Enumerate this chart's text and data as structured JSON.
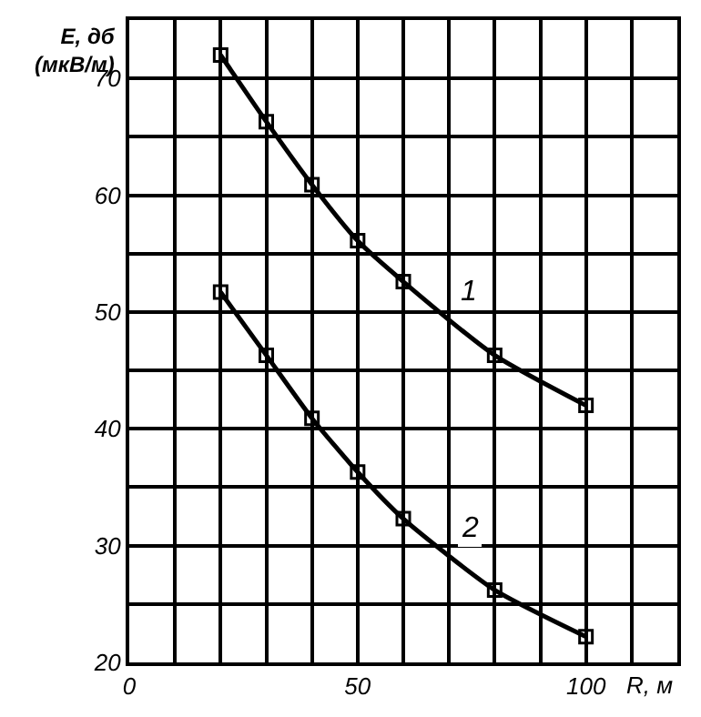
{
  "chart_data": {
    "type": "line",
    "xlabel": "R, м",
    "ylabel": "E, дб\n(мкВ/м)",
    "xlim": [
      0,
      120
    ],
    "ylim": [
      20,
      75
    ],
    "xticks": [
      0,
      {
        "value": 10,
        "label": null
      },
      {
        "value": 20,
        "label": null
      },
      {
        "value": 30,
        "label": null
      },
      {
        "value": 40,
        "label": null
      },
      50,
      {
        "value": 60,
        "label": null
      },
      {
        "value": 70,
        "label": null
      },
      {
        "value": 80,
        "label": null
      },
      {
        "value": 90,
        "label": null
      },
      100,
      {
        "value": 110,
        "label": null
      },
      {
        "value": 120,
        "label": null
      }
    ],
    "yticks": [
      20,
      {
        "value": 25,
        "label": null
      },
      30,
      {
        "value": 35,
        "label": null
      },
      40,
      {
        "value": 45,
        "label": null
      },
      50,
      {
        "value": 55,
        "label": null
      },
      60,
      {
        "value": 65,
        "label": null
      },
      70,
      {
        "value": 75,
        "label": null
      }
    ],
    "grid": true,
    "marker": "square",
    "line_style": "solid",
    "series": [
      {
        "name": "1",
        "color": "#000000",
        "x": [
          20,
          30,
          40,
          50,
          60,
          80,
          100
        ],
        "values": [
          72,
          66.3,
          60.9,
          56.1,
          52.6,
          46.3,
          42
        ]
      },
      {
        "name": "2",
        "color": "#000000",
        "x": [
          20,
          30,
          40,
          50,
          60,
          80,
          100
        ],
        "values": [
          51.7,
          46.3,
          40.9,
          36.3,
          32.3,
          26.2,
          22.2
        ]
      }
    ]
  }
}
